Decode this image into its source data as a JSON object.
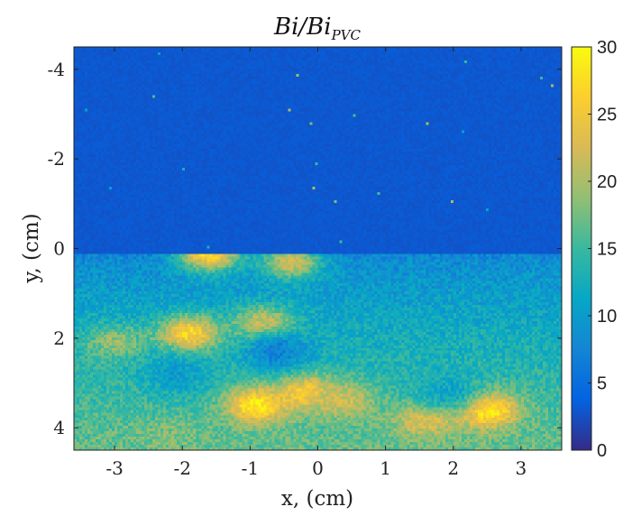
{
  "chart_data": {
    "type": "heatmap",
    "title": "Bi/Bi",
    "title_subscript": "PVC",
    "xlabel": "x, (cm)",
    "ylabel": "y, (cm)",
    "xlim": [
      -3.6,
      3.6
    ],
    "ylim": [
      -4.5,
      4.5
    ],
    "y_reversed": true,
    "x_ticks": [
      -3,
      -2,
      -1,
      0,
      1,
      2,
      3
    ],
    "x_tick_labels": [
      "-3",
      "-2",
      "-1",
      "0",
      "1",
      "2",
      "3"
    ],
    "y_ticks": [
      -4,
      -2,
      0,
      2,
      4
    ],
    "y_tick_labels": [
      "-4",
      "-2",
      "0",
      "2",
      "4"
    ],
    "colorbar": {
      "min": 0,
      "max": 30,
      "ticks": [
        0,
        5,
        10,
        15,
        20,
        25,
        30
      ],
      "tick_labels": [
        "0",
        "5",
        "10",
        "15",
        "20",
        "25",
        "30"
      ],
      "colormap": "parula",
      "position": "right"
    },
    "field": {
      "background_upper": 3,
      "boundary_y": 0.1,
      "value_at_boundary": 7.5,
      "value_at_bottom": 17,
      "hot_spots": [
        {
          "x": -1.6,
          "y": 0.1,
          "value": 28
        },
        {
          "x": -0.4,
          "y": 0.3,
          "value": 22
        },
        {
          "x": -3.0,
          "y": 2.1,
          "value": 19
        },
        {
          "x": -1.9,
          "y": 1.9,
          "value": 27
        },
        {
          "x": -0.8,
          "y": 1.7,
          "value": 23
        },
        {
          "x": -0.9,
          "y": 3.5,
          "value": 29
        },
        {
          "x": -0.2,
          "y": 3.2,
          "value": 26
        },
        {
          "x": 0.4,
          "y": 3.4,
          "value": 22
        },
        {
          "x": 1.6,
          "y": 3.8,
          "value": 24
        },
        {
          "x": 2.5,
          "y": 3.6,
          "value": 30
        },
        {
          "x": -2.2,
          "y": 4.2,
          "value": 18
        }
      ],
      "cool_spots": [
        {
          "x": -0.6,
          "y": 2.3,
          "value": 7
        },
        {
          "x": -2.1,
          "y": 2.8,
          "value": 10
        },
        {
          "x": 1.9,
          "y": 3.2,
          "value": 11
        }
      ]
    }
  },
  "colors": {
    "colormap_stops": [
      "#352a87",
      "#0363e1",
      "#1485d4",
      "#06a7c6",
      "#38b99e",
      "#92bf73",
      "#d9ba56",
      "#fcce2e",
      "#f9fb0e"
    ]
  }
}
